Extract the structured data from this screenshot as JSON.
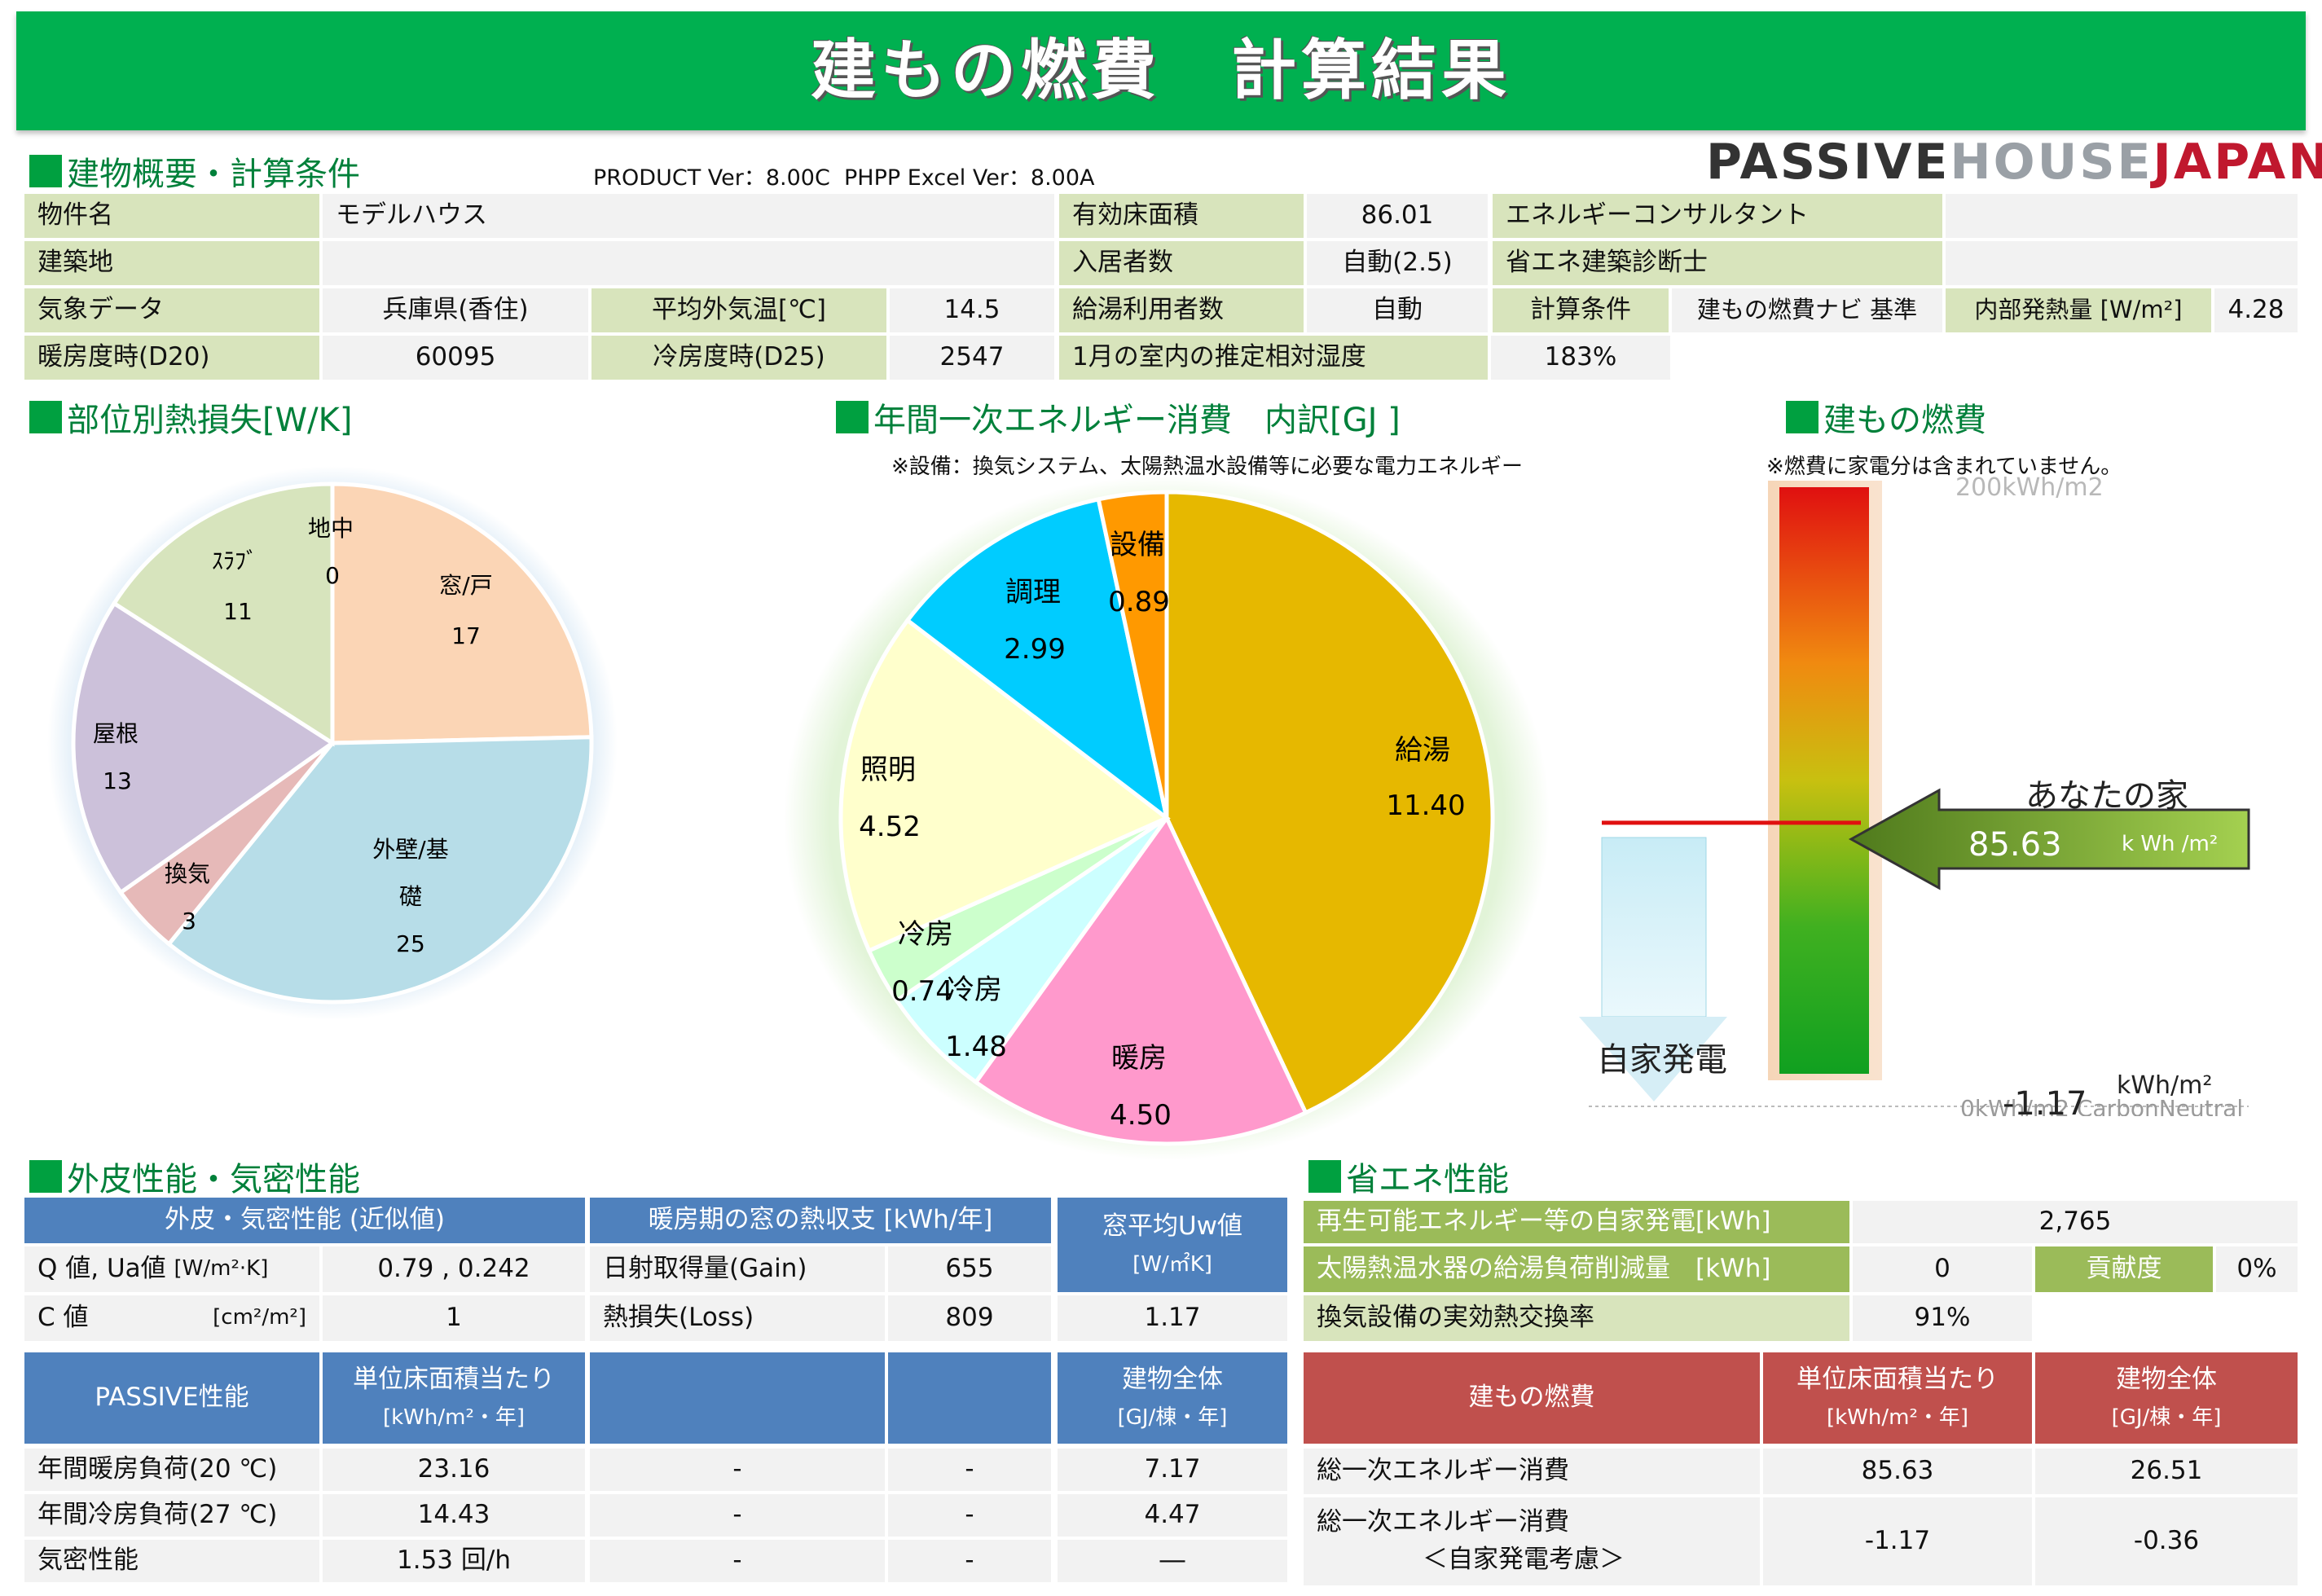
{
  "banner": {
    "title": "建もの燃費　計算結果"
  },
  "logo": {
    "part1": "PASSIVE",
    "part2": "HOUSE",
    "part3": "JAPAN"
  },
  "version": "PRODUCT Ver：8.00C  PHPP Excel Ver：8.00A",
  "sections": {
    "overview": "建物概要・計算条件",
    "heatloss": "部位別熱損失[W/K]",
    "primary": "年間一次エネルギー消費　内訳[GJ ]",
    "primary_note": "※設備：換気システム、太陽熱温水設備等に必要な電力エネルギー",
    "nenpi": "建もの燃費",
    "nenpi_note": "※燃費に家電分は含まれていません。",
    "envelope": "外皮性能・気密性能",
    "energy": "省エネ性能"
  },
  "overview": {
    "property_label": "物件名",
    "property_value": "モデルハウス",
    "site_label": "建築地",
    "site_value": "",
    "weather_label": "気象データ",
    "weather_value": "兵庫県(香住)",
    "avgtemp_label": "平均外気温[℃]",
    "avgtemp_value": "14.5",
    "hdd_label": "暖房度時(D20)",
    "hdd_value": "60095",
    "cdd_label": "冷房度時(D25)",
    "cdd_value": "2547",
    "floor_label": "有効床面積",
    "floor_value": "86.01",
    "occupants_label": "入居者数",
    "occupants_value": "自動(2.5)",
    "hotwater_label": "給湯利用者数",
    "hotwater_value": "自動",
    "humidity_label": "1月の室内の推定相対湿度",
    "humidity_value": "183%",
    "consultant_label": "エネルギーコンサルタント",
    "consultant_value": "",
    "diagnostician_label": "省エネ建築診断士",
    "diagnostician_value": "",
    "calc_label": "計算条件",
    "calc_value": "建もの燃費ナビ 基準",
    "internal_label": "内部発熱量 [W/m²]",
    "internal_value": "4.28"
  },
  "heatloss_labels": [
    {
      "name": "地中",
      "value": "0"
    },
    {
      "name": "窓/戸",
      "value": "17"
    },
    {
      "name": "外壁/基",
      "name2": "礎",
      "value": "25"
    },
    {
      "name": "換気",
      "value": "3"
    },
    {
      "name": "屋根",
      "value": "13"
    },
    {
      "name": "ｽﾗﾌﾞ",
      "value": "11"
    }
  ],
  "primary_labels": [
    {
      "name": "給湯",
      "value": "11.40"
    },
    {
      "name": "暖房",
      "value": "4.50"
    },
    {
      "name": "冷房",
      "value": "1.48"
    },
    {
      "name": "冷房",
      "value": "0.74"
    },
    {
      "name": "照明",
      "value": "4.52"
    },
    {
      "name": "調理",
      "value": "2.99"
    },
    {
      "name": "設備",
      "value": "0.89"
    }
  ],
  "chart_data": [
    {
      "type": "pie",
      "title": "部位別熱損失[W/K]",
      "categories": [
        "地中",
        "窓/戸",
        "外壁/基礎",
        "換気",
        "屋根",
        "ｽﾗﾌﾞ"
      ],
      "values": [
        0,
        17,
        25,
        3,
        13,
        11
      ],
      "colors": [
        "#a8c8e8",
        "#fbd5b5",
        "#b7dde8",
        "#e6b9b8",
        "#ccc1da",
        "#d7e4bd"
      ]
    },
    {
      "type": "pie",
      "title": "年間一次エネルギー消費　内訳[GJ ]",
      "categories": [
        "給湯",
        "暖房",
        "冷房",
        "冷房",
        "照明",
        "調理",
        "設備"
      ],
      "values": [
        11.4,
        4.5,
        1.48,
        0.74,
        4.52,
        2.99,
        0.89
      ],
      "colors": [
        "#e6b800",
        "#ff99cc",
        "#ccffff",
        "#ccffcc",
        "#ffffcc",
        "#00ccff",
        "#ff9900"
      ]
    }
  ],
  "gauge": {
    "top_label": "200kWh/m2",
    "house_label": "あなたの家",
    "house_value": "85.63",
    "house_unit": "k Wh /m²",
    "self_gen_label": "自家発電",
    "bottom_value": "-1.17",
    "bottom_unit": "kWh/m²",
    "bottom_label": "0kWh/m2 CarbonNeutral",
    "level_fraction": 0.428
  },
  "envelope": {
    "h1": "外皮・気密性能 (近似値)",
    "h2": "暖房期の窓の熱収支 [kWh/年]",
    "h3": "窓平均Uw値",
    "h3b": "[W/㎡K]",
    "q_label": "Q 値,  Ua値",
    "q_unit": "[W/m²·K]",
    "q_value": "0.79 , 0.242",
    "c_label": "C 値",
    "c_unit": "[cm²/m²]",
    "c_value": "1",
    "gain_label": "日射取得量(Gain)",
    "gain_value": "655",
    "loss_label": "熱損失(Loss)",
    "loss_value": "809",
    "uw_value": "1.17"
  },
  "passive": {
    "h1": "PASSIVE性能",
    "h2": "単位床面積当たり",
    "h2b": "[kWh/m²・年]",
    "h5": "建物全体",
    "h5b": "[GJ/棟・年]",
    "rows": [
      {
        "label": "年間暖房負荷(20 ℃)",
        "v1": "23.16",
        "v2": "-",
        "v3": "-",
        "v4": "7.17"
      },
      {
        "label": "年間冷房負荷(27 ℃)",
        "v1": "14.43",
        "v2": "-",
        "v3": "-",
        "v4": "4.47"
      },
      {
        "label": "気密性能",
        "v1": "1.53 回/h",
        "v2": "-",
        "v3": "-",
        "v4": "―"
      }
    ]
  },
  "energy": {
    "renew_label": "再生可能エネルギー等の自家発電[kWh]",
    "renew_value": "2,765",
    "solar_label": "太陽熱温水器の給湯負荷削減量　[kWh]",
    "solar_value": "0",
    "contrib_label": "貢献度",
    "contrib_value": "0%",
    "vent_label": "換気設備の実効熱交換率",
    "vent_value": "91%"
  },
  "nenpi_table": {
    "h1": "建もの燃費",
    "h2": "単位床面積当たり",
    "h2b": "[kWh/m²・年]",
    "h3": "建物全体",
    "h3b": "[GJ/棟・年]",
    "r1_label": "総一次エネルギー消費",
    "r1_v1": "85.63",
    "r1_v2": "26.51",
    "r2_label": "総一次エネルギー消費",
    "r2_label2": "＜自家発電考慮＞",
    "r2_v1": "-1.17",
    "r2_v2": "-0.36"
  }
}
